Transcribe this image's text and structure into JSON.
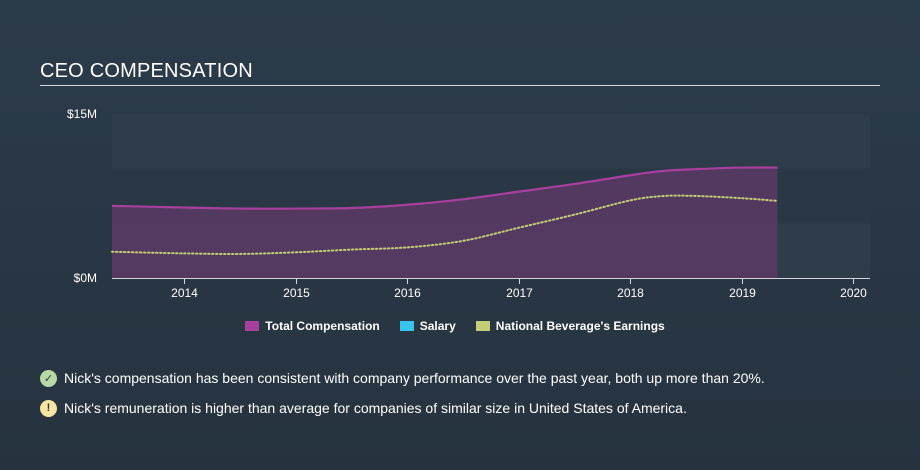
{
  "header": {
    "title": "CEO COMPENSATION"
  },
  "chart_data": {
    "type": "area",
    "x_ticks": [
      2014,
      2015,
      2016,
      2017,
      2018,
      2019,
      2020
    ],
    "xlim": [
      2013.35,
      2020.15
    ],
    "ylim": [
      0,
      15
    ],
    "y_tick_labels": [
      {
        "value": 15,
        "label": "$15M"
      },
      {
        "value": 0,
        "label": "$0M"
      }
    ],
    "series": [
      {
        "name": "Total Compensation",
        "color": "#a73f9d",
        "style": "area",
        "points": [
          [
            2013.35,
            6.6
          ],
          [
            2014.0,
            6.45
          ],
          [
            2014.5,
            6.35
          ],
          [
            2015.0,
            6.35
          ],
          [
            2015.5,
            6.4
          ],
          [
            2016.0,
            6.7
          ],
          [
            2016.5,
            7.2
          ],
          [
            2017.0,
            7.9
          ],
          [
            2017.5,
            8.6
          ],
          [
            2018.0,
            9.4
          ],
          [
            2018.3,
            9.8
          ],
          [
            2018.7,
            10.0
          ],
          [
            2019.0,
            10.1
          ],
          [
            2019.32,
            10.1
          ]
        ]
      },
      {
        "name": "Salary",
        "color": "#3bc3f0",
        "style": "line",
        "points": []
      },
      {
        "name": "National Beverage's Earnings",
        "color": "#c3cc76",
        "style": "dotted",
        "points": [
          [
            2013.35,
            2.4
          ],
          [
            2014.0,
            2.25
          ],
          [
            2014.5,
            2.2
          ],
          [
            2015.0,
            2.35
          ],
          [
            2015.5,
            2.6
          ],
          [
            2016.0,
            2.8
          ],
          [
            2016.5,
            3.4
          ],
          [
            2017.0,
            4.6
          ],
          [
            2017.5,
            5.8
          ],
          [
            2018.0,
            7.1
          ],
          [
            2018.3,
            7.5
          ],
          [
            2018.6,
            7.5
          ],
          [
            2019.0,
            7.3
          ],
          [
            2019.32,
            7.05
          ]
        ]
      }
    ],
    "grid_bands": true
  },
  "legend": [
    {
      "label": "Total Compensation",
      "color": "#a73f9d"
    },
    {
      "label": "Salary",
      "color": "#3bc3f0"
    },
    {
      "label": "National Beverage's Earnings",
      "color": "#c3cc76"
    }
  ],
  "notes": [
    {
      "icon": "check-icon",
      "glyph": "✓",
      "text": "Nick's compensation has been consistent with company performance over the past year, both up more than 20%."
    },
    {
      "icon": "warning-icon",
      "glyph": "!",
      "text": "Nick's remuneration is higher than average for companies of similar size in United States of America."
    }
  ]
}
